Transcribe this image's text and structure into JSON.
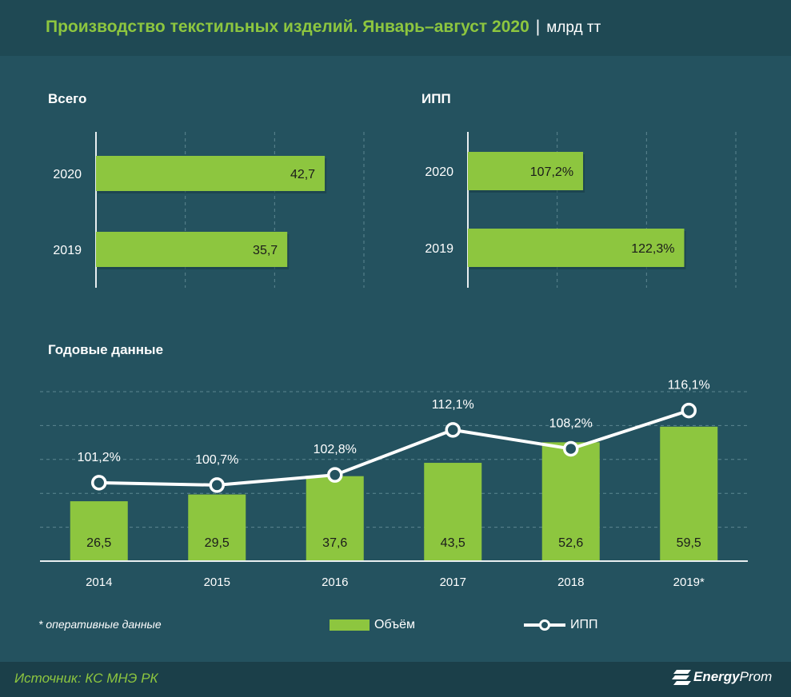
{
  "title": {
    "main": "Производство текстильных изделий. Январь–август 2020",
    "separator": "|",
    "unit": "млрд тт"
  },
  "colors": {
    "background": "#24525f",
    "header": "#1f4954",
    "footer": "#1b3f49",
    "bar": "#8dc63f",
    "accent_text": "#8dc63f",
    "line": "#ffffff"
  },
  "chart_data": [
    {
      "type": "bar",
      "orientation": "horizontal",
      "title": "Всего",
      "categories": [
        "2020",
        "2019"
      ],
      "values": [
        42.7,
        35.7
      ],
      "value_labels": [
        "42,7",
        "35,7"
      ],
      "xlim": [
        0,
        50
      ],
      "grid": true
    },
    {
      "type": "bar",
      "orientation": "horizontal",
      "title": "ИПП",
      "categories": [
        "2020",
        "2019"
      ],
      "values": [
        107.2,
        122.3
      ],
      "value_labels": [
        "107,2%",
        "122,3%"
      ],
      "xlim": [
        90,
        130
      ],
      "grid": true
    },
    {
      "type": "bar+line",
      "title": "Годовые данные",
      "categories": [
        "2014",
        "2015",
        "2016",
        "2017",
        "2018",
        "2019*"
      ],
      "series": [
        {
          "name": "Объём",
          "type": "bar",
          "values": [
            26.5,
            29.5,
            37.6,
            43.5,
            52.6,
            59.5
          ],
          "labels": [
            "26,5",
            "29,5",
            "37,6",
            "43,5",
            "52,6",
            "59,5"
          ]
        },
        {
          "name": "ИПП",
          "type": "line",
          "values": [
            101.2,
            100.7,
            102.8,
            112.1,
            108.2,
            116.1
          ],
          "labels": [
            "101,2%",
            "100,7%",
            "102,8%",
            "112,1%",
            "108,2%",
            "116,1%"
          ]
        }
      ],
      "ylim_bars": [
        0,
        75
      ],
      "ylim_line": [
        85,
        120
      ],
      "grid": true
    }
  ],
  "footnote": "* оперативные данные",
  "legend": {
    "bar_label": "Объём",
    "line_label": "ИПП"
  },
  "footer": {
    "source": "Источник: КС МНЭ РК",
    "logo_bold": "Energy",
    "logo_regular": "Prom"
  }
}
